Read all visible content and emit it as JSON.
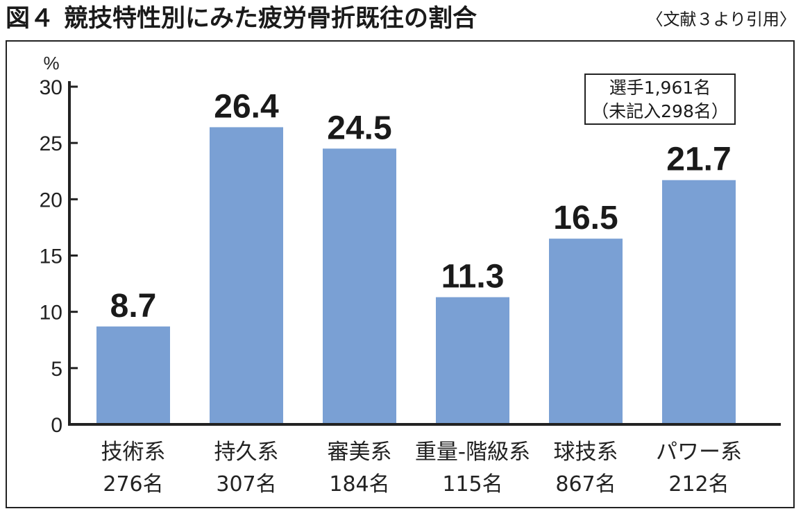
{
  "figure": {
    "label": "図４",
    "title": "競技特性別にみた疲労骨折既往の割合",
    "source": "〈文献３より引用〉"
  },
  "note": {
    "line1": "選手1,961名",
    "line2": "（未記入298名）"
  },
  "chart_data": {
    "type": "bar",
    "ylabel": "%",
    "ylim": [
      0,
      30
    ],
    "yticks": [
      "0",
      "5",
      "10",
      "15",
      "20",
      "25",
      "30"
    ],
    "grid": false,
    "categories": [
      "技術系",
      "持久系",
      "審美系",
      "重量-階級系",
      "球技系",
      "パワー系"
    ],
    "counts": [
      "276名",
      "307名",
      "184名",
      "115名",
      "867名",
      "212名"
    ],
    "values": [
      8.7,
      26.4,
      24.5,
      11.3,
      16.5,
      21.7
    ],
    "value_labels": [
      "8.7",
      "26.4",
      "24.5",
      "11.3",
      "16.5",
      "21.7"
    ],
    "bar_color": "#7aa0d4"
  }
}
